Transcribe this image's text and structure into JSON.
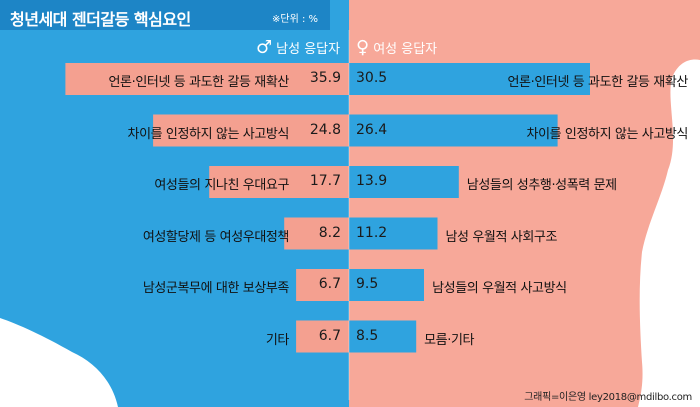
{
  "title": "청년세대 젠더갈등 핵심요인",
  "unit_note": "※단위 : %",
  "credit": "그래픽=이은영 ley2018@mdilbo.com",
  "legend": {
    "male": {
      "symbol": "♂",
      "label": "남성 응답자"
    },
    "female": {
      "symbol": "♀",
      "label": "여성 응답자"
    }
  },
  "colors": {
    "male_bar": "#f4a090",
    "female_bar": "#2fa3df",
    "male_bg": "#2fa3df",
    "female_bg": "#f7a899",
    "title_band": "#1d85c6"
  },
  "chart_data": {
    "type": "bar",
    "orientation": "horizontal",
    "layout": "diverging",
    "title": "청년세대 젠더갈등 핵심요인",
    "unit": "%",
    "xlim": [
      0,
      50
    ],
    "series": [
      {
        "name": "남성 응답자",
        "categories": [
          "언론·인터넷 등 과도한 갈등 재확산",
          "차이를 인정하지 않는 사고방식",
          "여성들의 지나친 우대요구",
          "여성할당제 등 여성우대정책",
          "남성군복무에 대한 보상부족",
          "기타"
        ],
        "values": [
          35.9,
          24.8,
          17.7,
          8.2,
          6.7,
          6.7
        ],
        "value_labels": [
          "35.9",
          "24.8",
          "17.7",
          "8.2",
          "6.7",
          "6.7"
        ]
      },
      {
        "name": "여성 응답자",
        "categories": [
          "언론·인터넷 등 과도한 갈등 재확산",
          "차이를 인정하지 않는 사고방식",
          "남성들의 성추행·성폭력 문제",
          "남성 우월적 사회구조",
          "남성들의 우월적 사고방식",
          "모름·기타"
        ],
        "values": [
          30.5,
          26.4,
          13.9,
          11.2,
          9.5,
          8.5
        ],
        "value_labels": [
          "30.5",
          "26.4",
          "13.9",
          "11.2",
          "9.5",
          "8.5"
        ]
      }
    ]
  }
}
